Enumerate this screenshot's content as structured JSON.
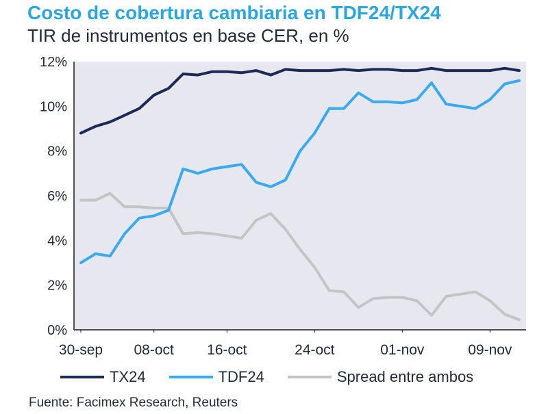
{
  "header": {
    "title": "Costo de cobertura cambiaria en TDF24/TX24",
    "subtitle": "TIR de instrumentos en base CER, en %"
  },
  "footer": {
    "source": "Fuente: Facimex Research, Reuters"
  },
  "chart_data": {
    "type": "line",
    "title": "Costo de cobertura cambiaria en TDF24/TX24",
    "subtitle": "TIR de instrumentos en base CER, en %",
    "xlabel": "",
    "ylabel": "",
    "x": [
      "30-sep",
      "04-oct",
      "05-oct",
      "06-oct",
      "07-oct",
      "08-oct",
      "12-oct",
      "13-oct",
      "14-oct",
      "15-oct",
      "16-oct",
      "19-oct",
      "20-oct",
      "21-oct",
      "22-oct",
      "23-oct",
      "24-oct",
      "26-oct",
      "27-oct",
      "28-oct",
      "29-oct",
      "30-oct",
      "01-nov",
      "02-nov",
      "03-nov",
      "06-nov",
      "07-nov",
      "08-nov",
      "09-nov",
      "10-nov",
      "13-nov"
    ],
    "x_ticks": [
      "30-sep",
      "08-oct",
      "16-oct",
      "24-oct",
      "01-nov",
      "09-nov"
    ],
    "y_ticks": [
      "0%",
      "2%",
      "4%",
      "6%",
      "8%",
      "10%",
      "12%"
    ],
    "ylim": [
      0,
      12
    ],
    "grid": false,
    "legend_position": "bottom",
    "colors": {
      "TX24": "#1b2a57",
      "TDF24": "#3aaaf0",
      "Spread entre ambos": "#c4c4c4",
      "plot_bg": "#e7e8ef",
      "axis": "#1b1b1b"
    },
    "series": [
      {
        "name": "TX24",
        "values": [
          8.8,
          9.1,
          9.3,
          9.6,
          9.9,
          10.5,
          10.8,
          11.45,
          11.4,
          11.55,
          11.55,
          11.5,
          11.6,
          11.4,
          11.65,
          11.6,
          11.6,
          11.6,
          11.65,
          11.6,
          11.65,
          11.65,
          11.6,
          11.6,
          11.7,
          11.6,
          11.6,
          11.6,
          11.6,
          11.7,
          11.6
        ]
      },
      {
        "name": "TDF24",
        "values": [
          3.0,
          3.4,
          3.3,
          4.3,
          5.0,
          5.1,
          5.35,
          7.2,
          7.0,
          7.2,
          7.3,
          7.4,
          6.6,
          6.4,
          6.7,
          8.0,
          8.8,
          9.9,
          9.9,
          10.6,
          10.2,
          10.2,
          10.15,
          10.3,
          11.05,
          10.1,
          10.0,
          9.9,
          10.3,
          11.0,
          11.15
        ]
      },
      {
        "name": "Spread entre ambos",
        "values": [
          5.8,
          5.8,
          6.1,
          5.5,
          5.5,
          5.45,
          5.45,
          4.3,
          4.35,
          4.3,
          4.2,
          4.1,
          4.9,
          5.2,
          4.5,
          3.6,
          2.8,
          1.75,
          1.7,
          1.0,
          1.4,
          1.45,
          1.45,
          1.3,
          0.65,
          1.5,
          1.6,
          1.7,
          1.3,
          0.7,
          0.45
        ]
      }
    ]
  }
}
